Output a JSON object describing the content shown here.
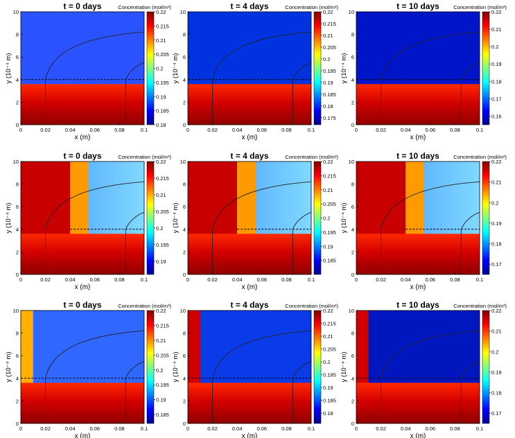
{
  "figure": {
    "xlabel": "x (m)",
    "ylabel": "y (10⁻⁴ m)",
    "cbar_title": "Concentration (mol/m³)"
  },
  "chart_data": [
    {
      "type": "heatmap",
      "title": "t = 0 days",
      "xlabel": "x (m)",
      "ylabel": "y (10^-4 m)",
      "xlim": [
        0,
        0.1
      ],
      "ylim": [
        0,
        10
      ],
      "xticks": [
        "0",
        "0.02",
        "0.04",
        "0.06",
        "0.08",
        "0.1"
      ],
      "yticks": [
        "0",
        "2",
        "4",
        "6",
        "8",
        "10"
      ],
      "colorbar": {
        "label": "Concentration (mol/m³)",
        "range": [
          0.18,
          0.22
        ],
        "ticks": [
          "0.22",
          "0.215",
          "0.21",
          "0.205",
          "0.2",
          "0.195",
          "0.19",
          "0.185",
          "0.18"
        ]
      }
    },
    {
      "type": "heatmap",
      "title": "t = 4 days",
      "xlabel": "x (m)",
      "ylabel": "",
      "xlim": [
        0,
        0.1
      ],
      "ylim": [
        0,
        10
      ],
      "xticks": [
        "0",
        "0.02",
        "0.04",
        "0.06",
        "0.08",
        "0.1"
      ],
      "yticks": [
        "0",
        "2",
        "4",
        "6",
        "8",
        "10"
      ],
      "colorbar": {
        "label": "Concentration (mol/m³)",
        "range": [
          0.172,
          0.22
        ],
        "ticks": [
          "0.22",
          "0.215",
          "0.21",
          "0.205",
          "0.2",
          "0.195",
          "0.19",
          "0.185",
          "0.18",
          "0.175"
        ]
      }
    },
    {
      "type": "heatmap",
      "title": "t = 10 days",
      "xlabel": "x (m)",
      "ylabel": "y (10^-4 m)",
      "xlim": [
        0,
        0.1
      ],
      "ylim": [
        0,
        10
      ],
      "xticks": [
        "0",
        "0.02",
        "0.04",
        "0.06",
        "0.08",
        "0.1"
      ],
      "yticks": [
        "0",
        "2",
        "4",
        "6",
        "8",
        "10"
      ],
      "colorbar": {
        "label": "Concentration (mol/m³)",
        "range": [
          0.155,
          0.22
        ],
        "ticks": [
          "0.22",
          "0.21",
          "0.2",
          "0.19",
          "0.18",
          "0.17",
          "0.16"
        ]
      }
    },
    {
      "type": "heatmap",
      "title": "t = 0 days",
      "xlabel": "x (m)",
      "ylabel": "y (10^-4 m)",
      "xlim": [
        0,
        0.1
      ],
      "ylim": [
        0,
        10
      ],
      "xticks": [
        "0",
        "0.02",
        "0.04",
        "0.06",
        "0.08",
        "0.1"
      ],
      "yticks": [
        "0",
        "2",
        "4",
        "6",
        "8",
        "10"
      ],
      "colorbar": {
        "label": "Concentration (mol/m³)",
        "range": [
          0.186,
          0.22
        ],
        "ticks": [
          "0.22",
          "0.215",
          "0.21",
          "0.205",
          "0.2",
          "0.195",
          "0.19"
        ]
      }
    },
    {
      "type": "heatmap",
      "title": "t = 4 days",
      "xlabel": "x (m)",
      "ylabel": "",
      "xlim": [
        0,
        0.1
      ],
      "ylim": [
        0,
        10
      ],
      "xticks": [
        "0",
        "0.02",
        "0.04",
        "0.06",
        "0.08",
        "0.1"
      ],
      "yticks": [
        "0",
        "2",
        "4",
        "6",
        "8",
        "10"
      ],
      "colorbar": {
        "label": "Concentration (mol/m³)",
        "range": [
          0.18,
          0.22
        ],
        "ticks": [
          "0.22",
          "0.215",
          "0.21",
          "0.205",
          "0.2",
          "0.195",
          "0.19",
          "0.185"
        ]
      }
    },
    {
      "type": "heatmap",
      "title": "t = 10 days",
      "xlabel": "x (m)",
      "ylabel": "y (10^-4 m)",
      "xlim": [
        0,
        0.1
      ],
      "ylim": [
        0,
        10
      ],
      "xticks": [
        "0",
        "0.02",
        "0.04",
        "0.06",
        "0.08",
        "0.1"
      ],
      "yticks": [
        "0",
        "2",
        "4",
        "6",
        "8",
        "10"
      ],
      "colorbar": {
        "label": "Concentration (mol/m³)",
        "range": [
          0.165,
          0.22
        ],
        "ticks": [
          "0.22",
          "0.21",
          "0.2",
          "0.19",
          "0.18",
          "0.17"
        ]
      }
    },
    {
      "type": "heatmap",
      "title": "t = 0 days",
      "xlabel": "x (m)",
      "ylabel": "y (10^-4 m)",
      "xlim": [
        0,
        0.1
      ],
      "ylim": [
        0,
        10
      ],
      "xticks": [
        "0",
        "0.02",
        "0.04",
        "0.06",
        "0.08",
        "0.1"
      ],
      "yticks": [
        "0",
        "2",
        "4",
        "6",
        "8",
        "10"
      ],
      "colorbar": {
        "label": "Concentration (mol/m³)",
        "range": [
          0.182,
          0.22
        ],
        "ticks": [
          "0.22",
          "0.215",
          "0.21",
          "0.205",
          "0.2",
          "0.195",
          "0.19",
          "0.185"
        ]
      }
    },
    {
      "type": "heatmap",
      "title": "t = 4 days",
      "xlabel": "x (m)",
      "ylabel": "",
      "xlim": [
        0,
        0.1
      ],
      "ylim": [
        0,
        10
      ],
      "xticks": [
        "0",
        "0.02",
        "0.04",
        "0.06",
        "0.08",
        "0.1"
      ],
      "yticks": [
        "0",
        "2",
        "4",
        "6",
        "8",
        "10"
      ],
      "colorbar": {
        "label": "Concentration (mol/m³)",
        "range": [
          0.176,
          0.22
        ],
        "ticks": [
          "0.22",
          "0.215",
          "0.21",
          "0.205",
          "0.2",
          "0.195",
          "0.19",
          "0.185",
          "0.18"
        ]
      }
    },
    {
      "type": "heatmap",
      "title": "t = 10 days",
      "xlabel": "x (m)",
      "ylabel": "y (10^-4 m)",
      "xlim": [
        0,
        0.1
      ],
      "ylim": [
        0,
        10
      ],
      "xticks": [
        "0",
        "0.02",
        "0.04",
        "0.06",
        "0.08",
        "0.1"
      ],
      "yticks": [
        "0",
        "2",
        "4",
        "6",
        "8",
        "10"
      ],
      "colorbar": {
        "label": "Concentration (mol/m³)",
        "range": [
          0.165,
          0.22
        ],
        "ticks": [
          "0.22",
          "0.21",
          "0.2",
          "0.19",
          "0.18",
          "0.17"
        ]
      }
    }
  ]
}
